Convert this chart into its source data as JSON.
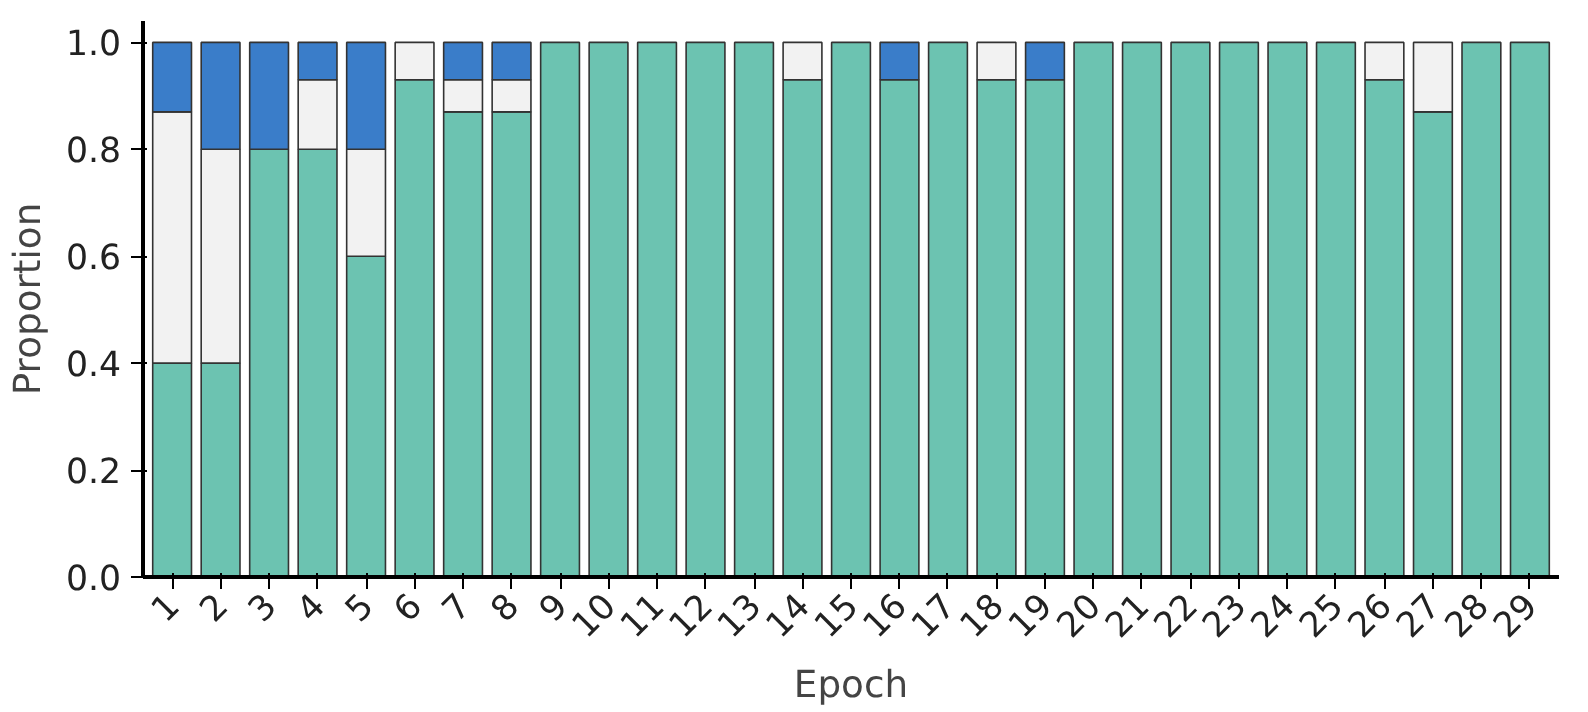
{
  "chart_data": {
    "type": "bar",
    "stacked": true,
    "xlabel": "Epoch",
    "ylabel": "Proportion",
    "categories": [
      "1",
      "2",
      "3",
      "4",
      "5",
      "6",
      "7",
      "8",
      "9",
      "10",
      "11",
      "12",
      "13",
      "14",
      "15",
      "16",
      "17",
      "18",
      "19",
      "20",
      "21",
      "22",
      "23",
      "24",
      "25",
      "26",
      "27",
      "28",
      "29"
    ],
    "series": [
      {
        "color": "#6cc3b1",
        "values": [
          0.4,
          0.4,
          0.8,
          0.8,
          0.6,
          0.93,
          0.87,
          0.87,
          1,
          1,
          1,
          1,
          1,
          0.93,
          1,
          0.93,
          1,
          0.93,
          0.93,
          1,
          1,
          1,
          1,
          1,
          1,
          0.93,
          0.87,
          1,
          1
        ]
      },
      {
        "color": "#f2f2f2",
        "values": [
          0.47,
          0.4,
          0,
          0.13,
          0.2,
          0.07,
          0.06,
          0.06,
          0,
          0,
          0,
          0,
          0,
          0.07,
          0,
          0,
          0,
          0.07,
          0,
          0,
          0,
          0,
          0,
          0,
          0,
          0.07,
          0.13,
          0,
          0
        ]
      },
      {
        "color": "#3a7dc9",
        "values": [
          0.13,
          0.2,
          0.2,
          0.07,
          0.2,
          0,
          0.07,
          0.07,
          0,
          0,
          0,
          0,
          0,
          0,
          0,
          0.07,
          0,
          0,
          0.07,
          0,
          0,
          0,
          0,
          0,
          0,
          0,
          0,
          0,
          0
        ]
      }
    ],
    "ylim": [
      0,
      1.04
    ],
    "yticks": [
      {
        "value": 0,
        "label": "0.0"
      },
      {
        "value": 0.2,
        "label": "0.2"
      },
      {
        "value": 0.4,
        "label": "0.4"
      },
      {
        "value": 0.6,
        "label": "0.6"
      },
      {
        "value": 0.8,
        "label": "0.8"
      },
      {
        "value": 1,
        "label": "1.0"
      }
    ],
    "grid": false
  }
}
